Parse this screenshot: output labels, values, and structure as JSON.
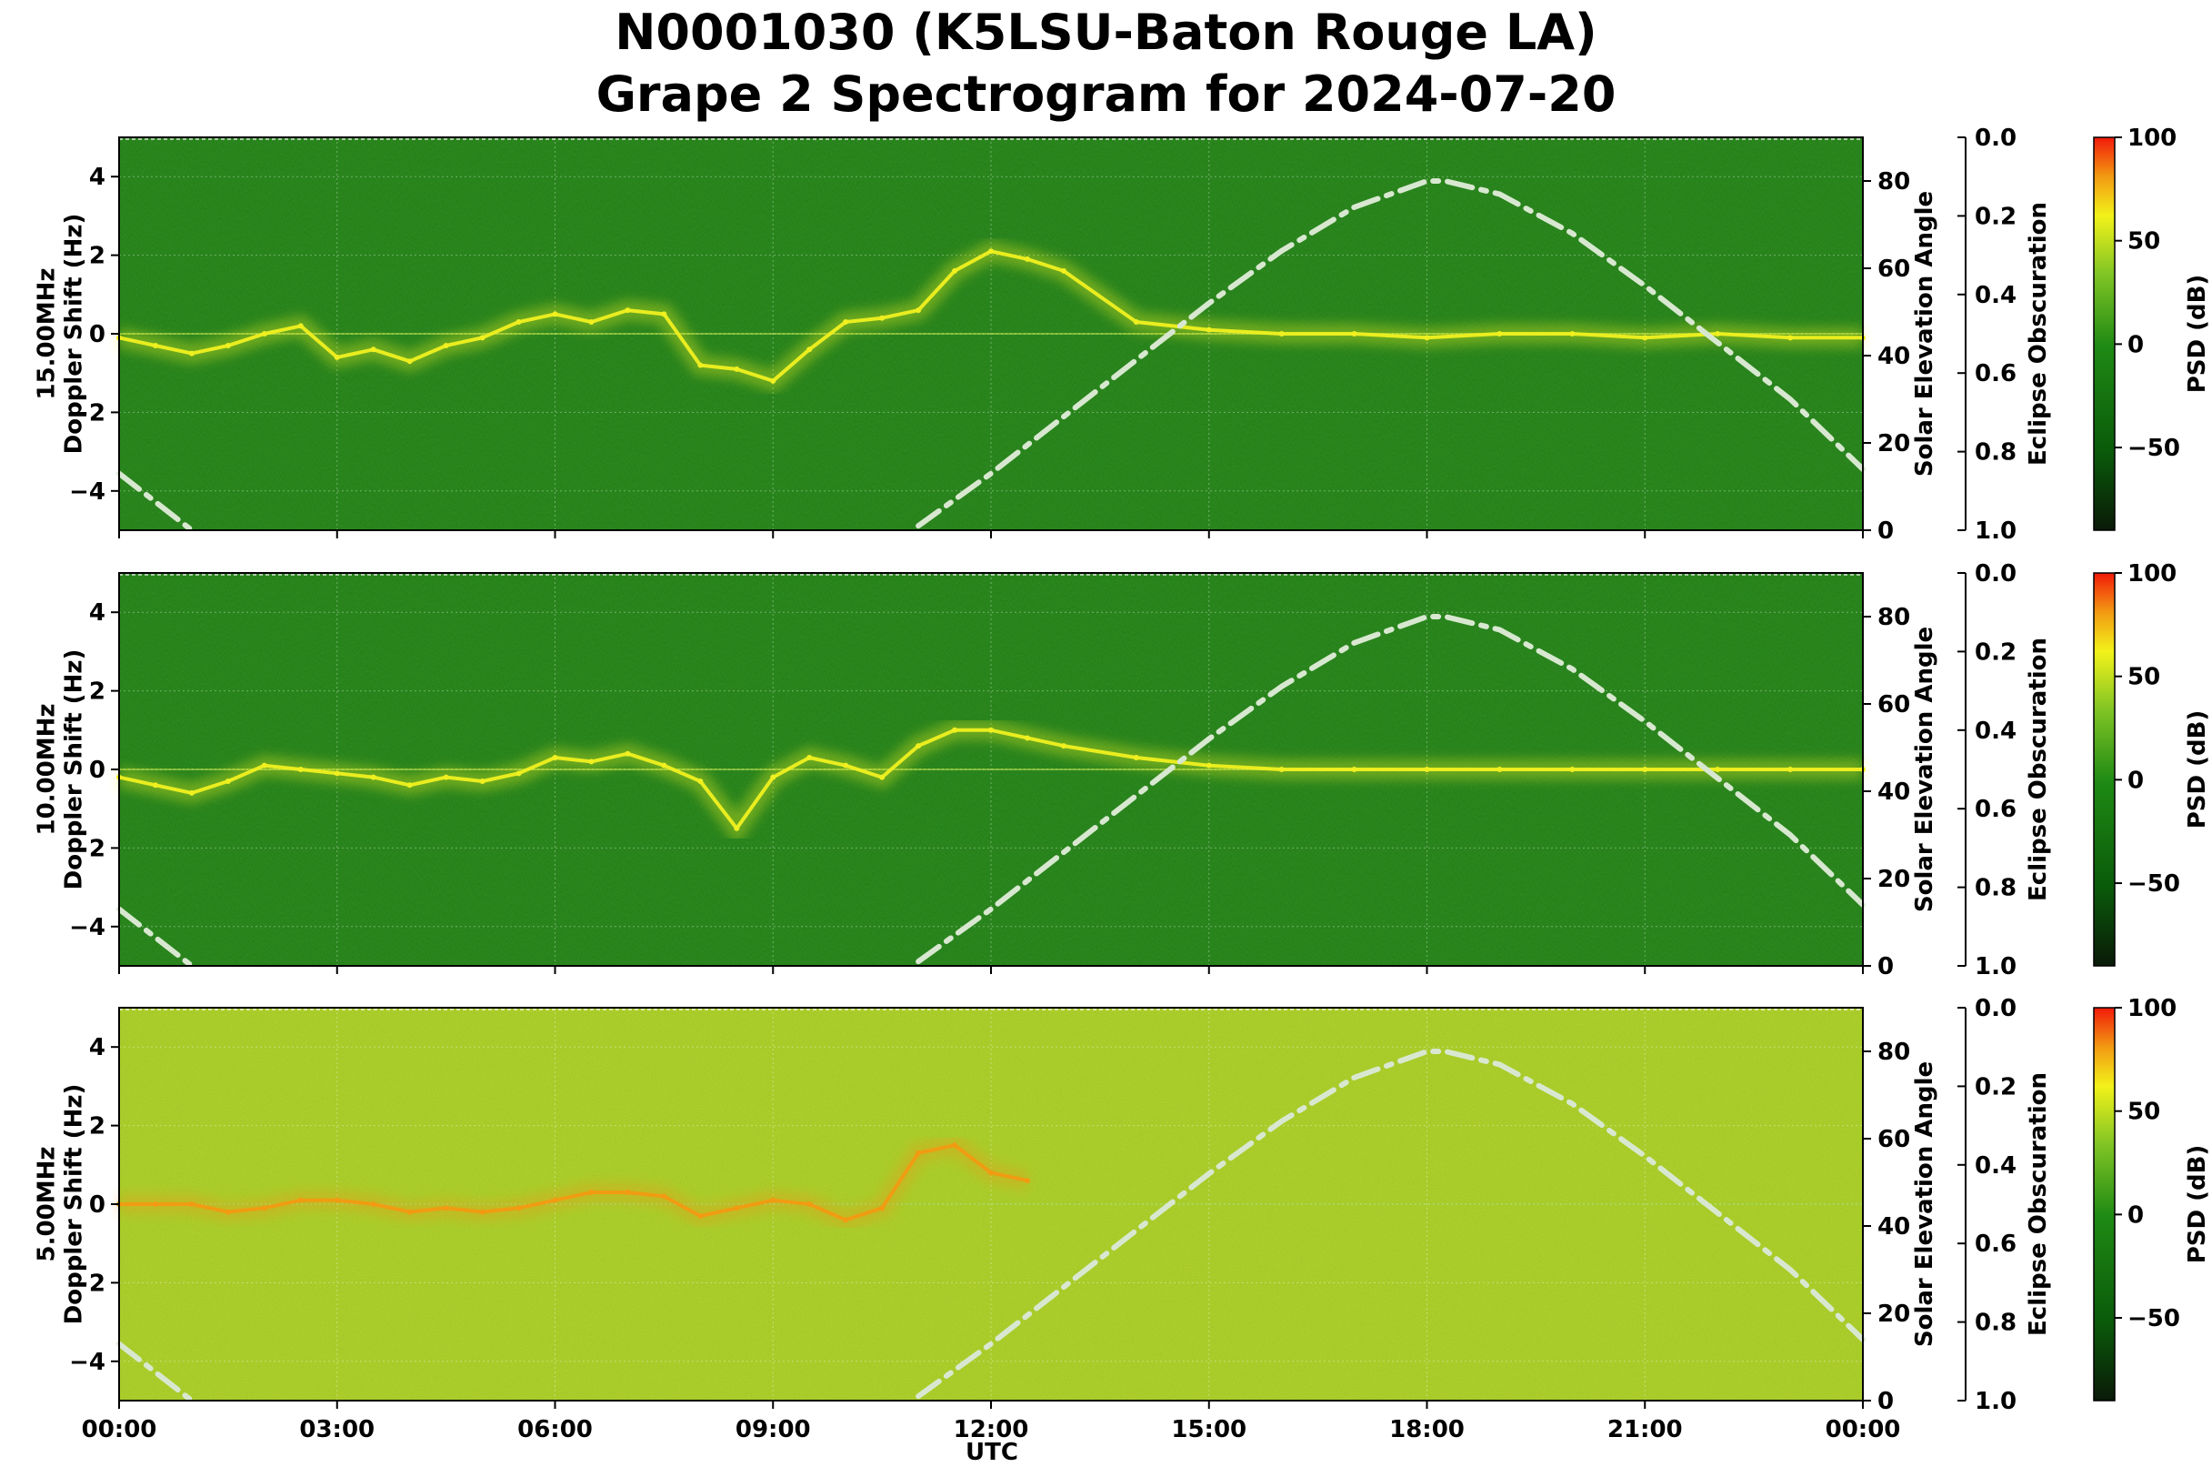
{
  "title": {
    "line1": "N0001030 (K5LSU-Baton Rouge LA)",
    "line2": "Grape 2 Spectrogram for 2024-07-20"
  },
  "chart_data": {
    "type": "heatmap",
    "xlabel": "UTC",
    "x_ticks": [
      "00:00",
      "03:00",
      "06:00",
      "09:00",
      "12:00",
      "15:00",
      "18:00",
      "21:00",
      "00:00"
    ],
    "x_range_hours": [
      0,
      24
    ],
    "grid": true,
    "panels": [
      {
        "label": "15.00MHz",
        "ylabel": "Doppler Shift (Hz)",
        "ylim": [
          -5,
          5
        ],
        "y_ticks": [
          4,
          2,
          0,
          -2,
          -4
        ],
        "background_color": "#1f7a14",
        "trace_color": "#f0f020",
        "doppler_trace": {
          "hours": [
            0,
            0.5,
            1,
            1.5,
            2,
            2.5,
            3,
            3.5,
            4,
            4.5,
            5,
            5.5,
            6,
            6.5,
            7,
            7.5,
            8,
            8.5,
            9,
            9.5,
            10,
            10.5,
            11,
            11.5,
            12,
            12.5,
            13,
            14,
            15,
            16,
            17,
            18,
            19,
            20,
            21,
            22,
            23,
            24
          ],
          "shift_hz": [
            -0.1,
            -0.3,
            -0.5,
            -0.3,
            0.0,
            0.2,
            -0.6,
            -0.4,
            -0.7,
            -0.3,
            -0.1,
            0.3,
            0.5,
            0.3,
            0.6,
            0.5,
            -0.8,
            -0.9,
            -1.2,
            -0.4,
            0.3,
            0.4,
            0.6,
            1.6,
            2.1,
            1.9,
            1.6,
            0.3,
            0.1,
            0.0,
            0.0,
            -0.1,
            0.0,
            0.0,
            -0.1,
            0.0,
            -0.1,
            -0.1
          ]
        },
        "solar_elevation": {
          "axis_label": "Solar Elevation Angle",
          "ylim": [
            0,
            90
          ],
          "ticks": [
            0,
            20,
            40,
            60,
            80
          ]
        },
        "eclipse": {
          "axis_label": "Eclipse Obscuration",
          "ticks": [
            "0.0",
            "0.2",
            "0.4",
            "0.6",
            "0.8",
            "1.0"
          ]
        },
        "colorbar": {
          "label": "PSD (dB)",
          "range": [
            -90,
            100
          ],
          "ticks": [
            "100",
            "50",
            "0",
            "−50"
          ]
        }
      },
      {
        "label": "10.00MHz",
        "ylabel": "Doppler Shift (Hz)",
        "ylim": [
          -5,
          5
        ],
        "y_ticks": [
          4,
          2,
          0,
          -2,
          -4
        ],
        "background_color": "#1f7a14",
        "trace_color": "#f0f020",
        "doppler_trace": {
          "hours": [
            0,
            0.5,
            1,
            1.5,
            2,
            2.5,
            3,
            3.5,
            4,
            4.5,
            5,
            5.5,
            6,
            6.5,
            7,
            7.5,
            8,
            8.5,
            9,
            9.5,
            10,
            10.5,
            11,
            11.5,
            12,
            12.5,
            13,
            14,
            15,
            16,
            17,
            18,
            19,
            20,
            21,
            22,
            23,
            24
          ],
          "shift_hz": [
            -0.2,
            -0.4,
            -0.6,
            -0.3,
            0.1,
            0.0,
            -0.1,
            -0.2,
            -0.4,
            -0.2,
            -0.3,
            -0.1,
            0.3,
            0.2,
            0.4,
            0.1,
            -0.3,
            -1.5,
            -0.2,
            0.3,
            0.1,
            -0.2,
            0.6,
            1.0,
            1.0,
            0.8,
            0.6,
            0.3,
            0.1,
            0.0,
            0.0,
            0.0,
            0.0,
            0.0,
            0.0,
            0.0,
            0.0,
            0.0
          ]
        },
        "solar_elevation": {
          "axis_label": "Solar Elevation Angle",
          "ylim": [
            0,
            90
          ],
          "ticks": [
            0,
            20,
            40,
            60,
            80
          ]
        },
        "eclipse": {
          "axis_label": "Eclipse Obscuration",
          "ticks": [
            "0.0",
            "0.2",
            "0.4",
            "0.6",
            "0.8",
            "1.0"
          ]
        },
        "colorbar": {
          "label": "PSD (dB)",
          "range": [
            -90,
            100
          ],
          "ticks": [
            "100",
            "50",
            "0",
            "−50"
          ]
        }
      },
      {
        "label": "5.00MHz",
        "ylabel": "Doppler Shift (Hz)",
        "ylim": [
          -5,
          5
        ],
        "y_ticks": [
          4,
          2,
          0,
          -2,
          -4
        ],
        "background_color": "#8fbf22",
        "trace_color": "#f29a12",
        "doppler_trace": {
          "hours": [
            0,
            0.5,
            1,
            1.5,
            2,
            2.5,
            3,
            3.5,
            4,
            4.5,
            5,
            5.5,
            6,
            6.5,
            7,
            7.5,
            8,
            8.5,
            9,
            9.5,
            10,
            10.5,
            11,
            11.5,
            12,
            12.5
          ],
          "shift_hz": [
            0.0,
            0.0,
            0.0,
            -0.2,
            -0.1,
            0.1,
            0.1,
            0.0,
            -0.2,
            -0.1,
            -0.2,
            -0.1,
            0.1,
            0.3,
            0.3,
            0.2,
            -0.3,
            -0.1,
            0.1,
            0.0,
            -0.4,
            -0.1,
            1.3,
            1.5,
            0.8,
            0.6
          ]
        },
        "solar_elevation": {
          "axis_label": "Solar Elevation Angle",
          "ylim": [
            0,
            90
          ],
          "ticks": [
            0,
            20,
            40,
            60,
            80
          ]
        },
        "eclipse": {
          "axis_label": "Eclipse Obscuration",
          "ticks": [
            "0.0",
            "0.2",
            "0.4",
            "0.6",
            "0.8",
            "1.0"
          ]
        },
        "colorbar": {
          "label": "PSD (dB)",
          "range": [
            -90,
            100
          ],
          "ticks": [
            "100",
            "50",
            "0",
            "−50"
          ]
        }
      }
    ],
    "solar_elevation_curve": {
      "style": "dash-dot",
      "color": "#d8e8d0",
      "hours": [
        0,
        1,
        2,
        3,
        4,
        5,
        6,
        7,
        8,
        9,
        10,
        11,
        12,
        13,
        14,
        15,
        16,
        17,
        18,
        18.25,
        19,
        20,
        21,
        22,
        23,
        24
      ],
      "degrees": [
        13,
        0,
        null,
        null,
        null,
        null,
        null,
        null,
        null,
        null,
        null,
        1,
        13,
        26,
        39,
        52,
        64,
        74,
        80,
        80,
        77,
        68,
        56,
        43,
        30,
        14
      ]
    }
  }
}
